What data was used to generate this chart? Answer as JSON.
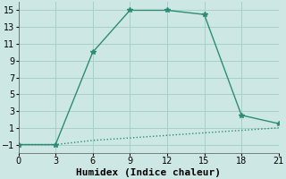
{
  "line1_x": [
    0,
    3,
    6,
    9,
    12,
    15,
    18,
    21
  ],
  "line1_y": [
    -1,
    -1,
    10,
    15,
    15,
    14.5,
    2.5,
    1.5
  ],
  "line2_x": [
    0,
    3,
    6,
    9,
    12,
    15,
    18,
    21
  ],
  "line2_y": [
    -1,
    -1,
    -0.5,
    -0.2,
    0.1,
    0.4,
    0.7,
    1.0
  ],
  "line_color": "#2e8b74",
  "marker": "*",
  "marker_size": 4,
  "xlabel": "Humidex (Indice chaleur)",
  "xlim": [
    0,
    21
  ],
  "ylim": [
    -2,
    16
  ],
  "xticks": [
    0,
    3,
    6,
    9,
    12,
    15,
    18,
    21
  ],
  "yticks": [
    -1,
    1,
    3,
    5,
    7,
    9,
    11,
    13,
    15
  ],
  "bg_color": "#cde8e4",
  "grid_color": "#a8cfc9",
  "tick_fontsize": 7,
  "xlabel_fontsize": 8
}
